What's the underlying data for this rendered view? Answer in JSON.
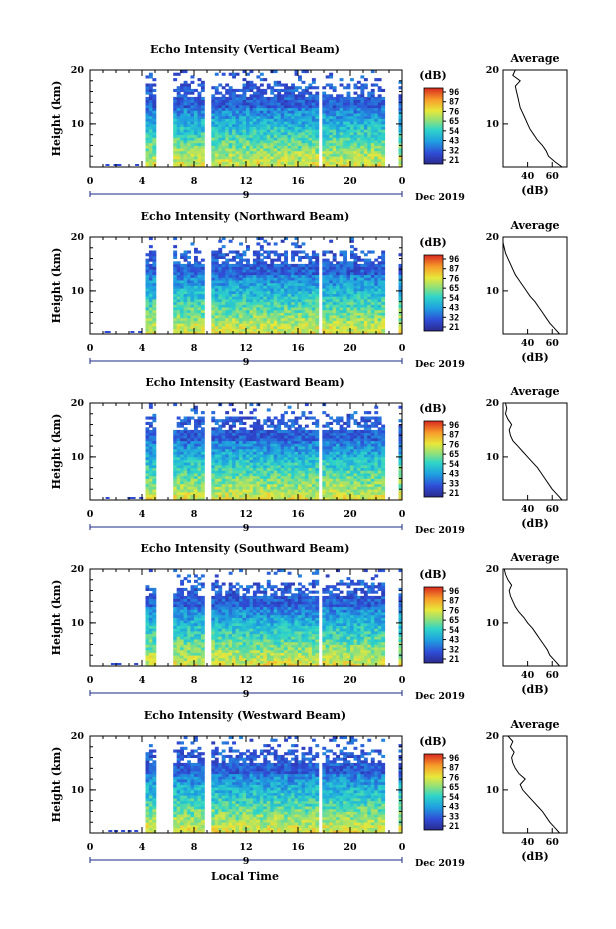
{
  "bottom_label": "Local Time",
  "date_label": "Dec 2019",
  "day_label": "9",
  "colorbar_title": "(dB)",
  "colorbar_ticks": [
    "96",
    "87",
    "76",
    "65",
    "54",
    "43",
    "32",
    "21"
  ],
  "colorbar_ticks_east": [
    "96",
    "87",
    "76",
    "65",
    "54",
    "43",
    "33",
    "21"
  ],
  "colorbar_ticks_south": [
    "96",
    "87",
    "76",
    "65",
    "54",
    "43",
    "32",
    "21"
  ],
  "colorbar_ticks_west": [
    "96",
    "87",
    "76",
    "65",
    "54",
    "43",
    "33",
    "21"
  ],
  "avg_title": "Average",
  "avg_xlabel": "(dB)",
  "ylabel": "Height (km)",
  "chart_data": [
    {
      "type": "heatmap",
      "title": "Echo Intensity (Vertical Beam)",
      "xlabel": "Local Time",
      "ylabel": "Height (km)",
      "x_ticks": [
        "0",
        "4",
        "8",
        "12",
        "16",
        "20",
        "0"
      ],
      "y_ticks": [
        "20",
        "10"
      ],
      "xlim": [
        0,
        24
      ],
      "ylim": [
        2,
        20
      ],
      "colorbar": {
        "label": "(dB)",
        "ticks": [
          96,
          87,
          76,
          65,
          54,
          43,
          32,
          21
        ]
      },
      "data_gaps_hours": [
        [
          0,
          4.3
        ],
        [
          5.0,
          6.3
        ],
        [
          8.7,
          9.3
        ],
        [
          17.6,
          17.9
        ],
        [
          22.8,
          23.7
        ]
      ],
      "avg_profile": {
        "title": "Average",
        "xlabel": "(dB)",
        "x_ticks": [
          "40",
          "60"
        ],
        "y_ticks": [
          "20",
          "10"
        ],
        "height_km": [
          2,
          3,
          4,
          5,
          6,
          7,
          8,
          9,
          10,
          11,
          12,
          13,
          14,
          15,
          16,
          17,
          18,
          19,
          20
        ],
        "db": [
          68,
          62,
          57,
          55,
          52,
          48,
          45,
          42,
          40,
          38,
          36,
          34,
          33,
          32,
          31,
          30,
          34,
          28,
          30
        ]
      }
    },
    {
      "type": "heatmap",
      "title": "Echo Intensity (Northward Beam)",
      "xlabel": "Local Time",
      "ylabel": "Height (km)",
      "x_ticks": [
        "0",
        "4",
        "8",
        "12",
        "16",
        "20",
        "0"
      ],
      "y_ticks": [
        "20",
        "10"
      ],
      "xlim": [
        0,
        24
      ],
      "ylim": [
        2,
        20
      ],
      "colorbar": {
        "label": "(dB)",
        "ticks": [
          96,
          87,
          76,
          65,
          54,
          43,
          32,
          21
        ]
      },
      "data_gaps_hours": [
        [
          0,
          4.3
        ],
        [
          5.0,
          6.3
        ],
        [
          8.7,
          9.3
        ],
        [
          17.6,
          17.9
        ],
        [
          22.8,
          23.7
        ]
      ],
      "avg_profile": {
        "title": "Average",
        "xlabel": "(dB)",
        "x_ticks": [
          "40",
          "60"
        ],
        "y_ticks": [
          "20",
          "10"
        ],
        "height_km": [
          2,
          3,
          4,
          5,
          6,
          7,
          8,
          9,
          10,
          11,
          12,
          13,
          14,
          15,
          16,
          17,
          18,
          19,
          20
        ],
        "db": [
          66,
          62,
          58,
          55,
          52,
          49,
          46,
          42,
          39,
          36,
          33,
          30,
          28,
          26,
          24,
          22,
          21,
          20,
          20
        ]
      }
    },
    {
      "type": "heatmap",
      "title": "Echo Intensity (Eastward Beam)",
      "xlabel": "Local Time",
      "ylabel": "Height (km)",
      "x_ticks": [
        "0",
        "4",
        "8",
        "12",
        "16",
        "20",
        "0"
      ],
      "y_ticks": [
        "20",
        "10"
      ],
      "xlim": [
        0,
        24
      ],
      "ylim": [
        2,
        20
      ],
      "colorbar": {
        "label": "(dB)",
        "ticks": [
          96,
          87,
          76,
          65,
          54,
          43,
          33,
          21
        ]
      },
      "data_gaps_hours": [
        [
          0,
          4.3
        ],
        [
          5.0,
          6.3
        ],
        [
          8.7,
          9.3
        ],
        [
          17.6,
          17.9
        ],
        [
          22.8,
          23.7
        ]
      ],
      "avg_profile": {
        "title": "Average",
        "xlabel": "(dB)",
        "x_ticks": [
          "40",
          "60"
        ],
        "y_ticks": [
          "20",
          "10"
        ],
        "height_km": [
          2,
          3,
          4,
          5,
          6,
          7,
          8,
          9,
          10,
          11,
          12,
          13,
          14,
          15,
          16,
          17,
          18,
          19,
          20
        ],
        "db": [
          68,
          64,
          60,
          57,
          54,
          51,
          48,
          44,
          40,
          36,
          32,
          28,
          26,
          25,
          27,
          24,
          22,
          23,
          22
        ]
      }
    },
    {
      "type": "heatmap",
      "title": "Echo Intensity (Southward Beam)",
      "xlabel": "Local Time",
      "ylabel": "Height (km)",
      "x_ticks": [
        "0",
        "4",
        "8",
        "12",
        "16",
        "20",
        "0"
      ],
      "y_ticks": [
        "20",
        "10"
      ],
      "xlim": [
        0,
        24
      ],
      "ylim": [
        2,
        20
      ],
      "colorbar": {
        "label": "(dB)",
        "ticks": [
          96,
          87,
          76,
          65,
          54,
          43,
          32,
          21
        ]
      },
      "data_gaps_hours": [
        [
          0,
          4.3
        ],
        [
          5.0,
          6.3
        ],
        [
          8.7,
          9.3
        ],
        [
          17.6,
          17.9
        ],
        [
          22.8,
          23.7
        ]
      ],
      "avg_profile": {
        "title": "Average",
        "xlabel": "(dB)",
        "x_ticks": [
          "40",
          "60"
        ],
        "y_ticks": [
          "20",
          "10"
        ],
        "height_km": [
          2,
          3,
          4,
          5,
          6,
          7,
          8,
          9,
          10,
          11,
          12,
          13,
          14,
          15,
          16,
          17,
          18,
          19,
          20
        ],
        "db": [
          66,
          62,
          58,
          56,
          53,
          50,
          47,
          44,
          40,
          37,
          33,
          30,
          28,
          26,
          25,
          27,
          24,
          22,
          21
        ]
      }
    },
    {
      "type": "heatmap",
      "title": "Echo Intensity (Westward Beam)",
      "xlabel": "Local Time",
      "ylabel": "Height (km)",
      "x_ticks": [
        "0",
        "4",
        "8",
        "12",
        "16",
        "20",
        "0"
      ],
      "y_ticks": [
        "20",
        "10"
      ],
      "xlim": [
        0,
        24
      ],
      "ylim": [
        2,
        20
      ],
      "colorbar": {
        "label": "(dB)",
        "ticks": [
          96,
          87,
          76,
          65,
          54,
          43,
          33,
          21
        ]
      },
      "data_gaps_hours": [
        [
          0,
          4.3
        ],
        [
          5.0,
          6.3
        ],
        [
          8.7,
          9.3
        ],
        [
          17.6,
          17.9
        ],
        [
          22.8,
          23.7
        ]
      ],
      "avg_profile": {
        "title": "Average",
        "xlabel": "(dB)",
        "x_ticks": [
          "40",
          "60"
        ],
        "y_ticks": [
          "20",
          "10"
        ],
        "height_km": [
          2,
          3,
          4,
          5,
          6,
          7,
          8,
          9,
          10,
          11,
          12,
          13,
          14,
          15,
          16,
          17,
          18,
          19,
          20
        ],
        "db": [
          66,
          62,
          58,
          55,
          52,
          48,
          44,
          40,
          36,
          34,
          38,
          33,
          30,
          28,
          27,
          29,
          26,
          28,
          24
        ]
      }
    }
  ]
}
